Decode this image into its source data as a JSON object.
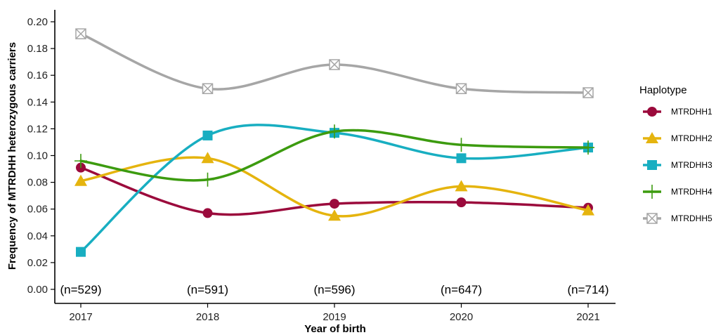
{
  "chart_data": {
    "type": "line",
    "xlabel": "Year of birth",
    "ylabel": "Frequency of MTRDHH heterozygous carriers",
    "x": [
      2017,
      2018,
      2019,
      2020,
      2021
    ],
    "x_ticks": [
      "2017",
      "2018",
      "2019",
      "2020",
      "2021"
    ],
    "ylim": [
      0,
      0.2
    ],
    "y_ticks": [
      "0.00",
      "0.02",
      "0.04",
      "0.06",
      "0.08",
      "0.10",
      "0.12",
      "0.14",
      "0.16",
      "0.18",
      "0.20"
    ],
    "sample_sizes": [
      "(n=529)",
      "(n=591)",
      "(n=596)",
      "(n=647)",
      "(n=714)"
    ],
    "legend_title": "Haplotype",
    "legend_position": "right",
    "grid": false,
    "smoothed": true,
    "series": [
      {
        "name": "MTRDHH1",
        "color": "#9b0a3c",
        "marker": "circle",
        "values": [
          0.091,
          0.057,
          0.064,
          0.065,
          0.061
        ]
      },
      {
        "name": "MTRDHH2",
        "color": "#e5b40e",
        "marker": "triangle",
        "values": [
          0.081,
          0.098,
          0.055,
          0.077,
          0.059
        ]
      },
      {
        "name": "MTRDHH3",
        "color": "#18aec1",
        "marker": "square",
        "values": [
          0.028,
          0.115,
          0.117,
          0.098,
          0.106
        ]
      },
      {
        "name": "MTRDHH4",
        "color": "#3c9b0f",
        "marker": "plus",
        "values": [
          0.096,
          0.082,
          0.118,
          0.108,
          0.106
        ]
      },
      {
        "name": "MTRDHH5",
        "color": "#a6a6a6",
        "marker": "boxcross",
        "values": [
          0.191,
          0.15,
          0.168,
          0.15,
          0.147
        ]
      }
    ]
  }
}
